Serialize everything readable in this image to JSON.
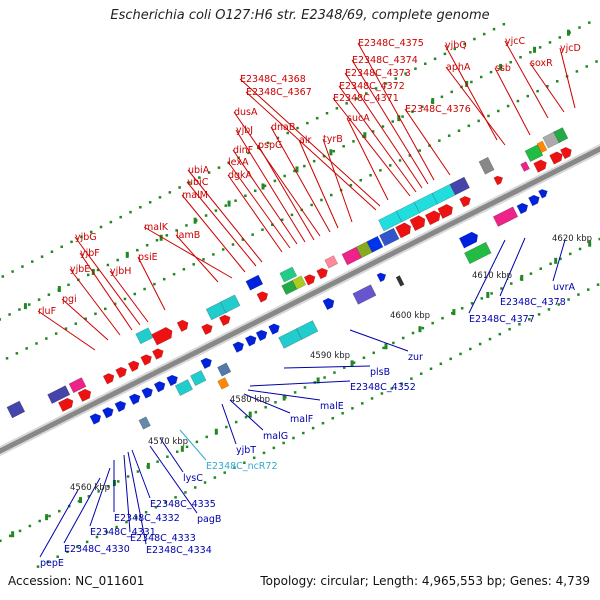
{
  "title": "Escherichia coli O127:H6 str. E2348/69, complete genome",
  "footer": {
    "accession": "Accession: NC_011601",
    "topology": "Topology: circular; Length: 4,965,553 bp; Genes: 4,739"
  },
  "colors": {
    "forward_label": "#cc0000",
    "reverse_label": "#0000aa",
    "ncrna_label": "#33aacc",
    "backbone": "#888888",
    "tick": "#228822"
  },
  "kbp_ticks": [
    "4560 kbp",
    "4570 kbp",
    "4580 kbp",
    "4590 kbp",
    "4600 kbp",
    "4610 kbp",
    "4620 kbp"
  ],
  "top_labels": [
    "rluF",
    "pgi",
    "yjbE",
    "yjbF",
    "yjbG",
    "yjbH",
    "psiE",
    "lamB",
    "malK",
    "malM",
    "ubiC",
    "ubiA",
    "dgkA",
    "lexA",
    "dinF",
    "yjbJ",
    "pspG",
    "dusA",
    "dnaB",
    "alr",
    "tyrB",
    "sucA",
    "E2348C_4367",
    "E2348C_4368",
    "E2348C_4371",
    "E2348C_4372",
    "E2348C_4373",
    "E2348C_4374",
    "E2348C_4375",
    "E2348C_4376",
    "yjbQ",
    "aphA",
    "ssb",
    "yjcC",
    "soxR",
    "yjcD"
  ],
  "bottom_labels": [
    "pepE",
    "E2348C_4330",
    "E2348C_4331",
    "E2348C_4332",
    "E2348C_4333",
    "E2348C_4334",
    "E2348C_4335",
    "pagB",
    "lysC",
    "E2348C_ncR72",
    "yjbT",
    "malG",
    "malF",
    "malE",
    "E2348C_4352",
    "plsB",
    "zur",
    "E2348C_4377",
    "E2348C_4378",
    "uvrA"
  ]
}
